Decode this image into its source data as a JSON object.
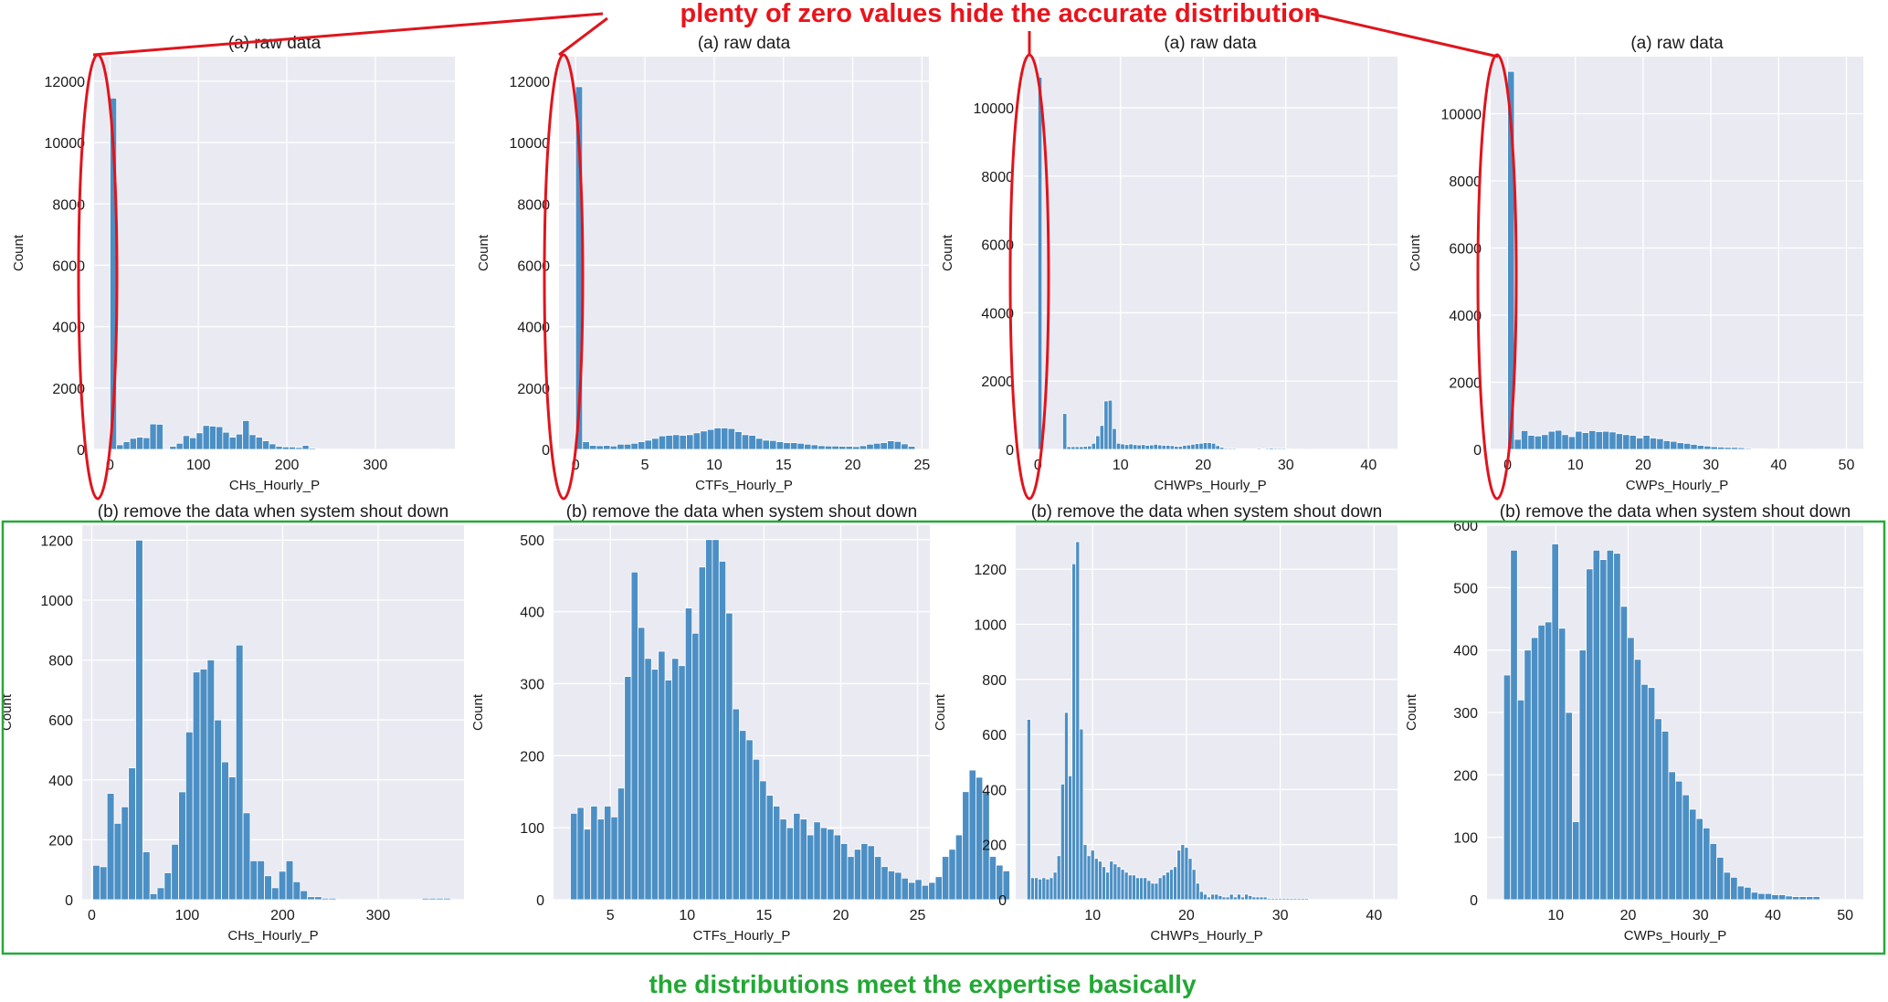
{
  "annotations": {
    "top": "plenty of zero values hide the accurate distribution",
    "bottom": "the distributions meet the expertise basically",
    "top_color": "#e8141c",
    "bottom_color": "#22a834",
    "ellipse_color": "#e0141c",
    "box_color": "#28a83a"
  },
  "style": {
    "plot_bg": "#eaeaf2",
    "grid": "#ffffff",
    "bar_fill": "#4c8fc4",
    "bar_edge": "#3a7ab0"
  },
  "chart_data": [
    {
      "type": "bar",
      "title": "(a) raw data",
      "xlabel": "CHs_Hourly_P",
      "ylabel": "Count",
      "xlim": [
        -18,
        390
      ],
      "ylim": [
        0,
        12800
      ],
      "xticks": [
        0,
        100,
        200,
        300
      ],
      "yticks": [
        0,
        2000,
        4000,
        6000,
        8000,
        10000,
        12000
      ],
      "bin_start": 0,
      "bin_width": 7.5,
      "values": [
        11450,
        150,
        250,
        360,
        400,
        380,
        830,
        820,
        0,
        100,
        200,
        450,
        380,
        540,
        780,
        760,
        740,
        560,
        400,
        500,
        940,
        480,
        400,
        280,
        180,
        100,
        80,
        80,
        60,
        130,
        40,
        20,
        10,
        10,
        5,
        5,
        0,
        0,
        0,
        0,
        0,
        0,
        0,
        0,
        0,
        0,
        0,
        0,
        0,
        5
      ]
    },
    {
      "type": "bar",
      "title": "(a) raw data",
      "xlabel": "CTFs_Hourly_P",
      "ylabel": "Count",
      "xlim": [
        -1.2,
        25.5
      ],
      "ylim": [
        0,
        12800
      ],
      "xticks": [
        0,
        5,
        10,
        15,
        20,
        25
      ],
      "yticks": [
        0,
        2000,
        4000,
        6000,
        8000,
        10000,
        12000
      ],
      "bin_start": 0,
      "bin_width": 0.5,
      "values": [
        11820,
        250,
        130,
        120,
        130,
        110,
        170,
        170,
        200,
        250,
        300,
        360,
        440,
        460,
        480,
        460,
        480,
        540,
        600,
        650,
        700,
        700,
        680,
        580,
        480,
        460,
        360,
        300,
        290,
        250,
        220,
        220,
        200,
        170,
        150,
        120,
        110,
        110,
        100,
        100,
        90,
        120,
        170,
        200,
        220,
        280,
        260,
        180,
        100
      ]
    },
    {
      "type": "bar",
      "title": "(a) raw data",
      "xlabel": "CHWPs_Hourly_P",
      "ylabel": "Count",
      "xlim": [
        -1.8,
        43.5
      ],
      "ylim": [
        0,
        11500
      ],
      "xticks": [
        0,
        10,
        20,
        30,
        40
      ],
      "yticks": [
        0,
        2000,
        4000,
        6000,
        8000,
        10000
      ],
      "bin_start": 0,
      "bin_width": 0.5,
      "values": [
        10900,
        0,
        0,
        0,
        0,
        0,
        1050,
        80,
        80,
        80,
        80,
        90,
        100,
        180,
        400,
        700,
        1420,
        1440,
        610,
        180,
        160,
        140,
        160,
        140,
        130,
        140,
        120,
        130,
        150,
        130,
        120,
        120,
        110,
        90,
        90,
        120,
        130,
        150,
        170,
        180,
        200,
        200,
        180,
        110,
        60,
        30,
        30,
        30,
        20,
        20,
        20,
        20,
        20,
        30,
        20,
        30,
        40,
        30,
        30,
        30,
        20,
        10,
        5,
        5,
        5,
        0,
        0,
        0,
        0,
        0,
        0,
        0,
        0,
        0,
        0,
        0,
        0,
        0,
        0,
        0,
        0,
        0,
        0,
        0
      ]
    },
    {
      "type": "bar",
      "title": "(a) raw data",
      "xlabel": "CWPs_Hourly_P",
      "ylabel": "Count",
      "xlim": [
        -2.5,
        52.5
      ],
      "ylim": [
        0,
        11700
      ],
      "xticks": [
        0,
        10,
        20,
        30,
        40,
        50
      ],
      "yticks": [
        0,
        2000,
        4000,
        6000,
        8000,
        10000
      ],
      "bin_start": 0,
      "bin_width": 1.0,
      "values": [
        11260,
        300,
        560,
        420,
        400,
        440,
        540,
        570,
        440,
        380,
        540,
        500,
        560,
        530,
        540,
        520,
        470,
        440,
        420,
        340,
        420,
        340,
        320,
        260,
        240,
        200,
        180,
        150,
        120,
        100,
        80,
        70,
        60,
        60,
        50,
        30,
        20,
        20,
        10,
        10,
        10,
        10,
        10,
        10,
        10,
        5,
        5,
        5,
        5,
        5
      ]
    },
    {
      "type": "bar",
      "title": "(b) remove the data when system shout down",
      "xlabel": "CHs_Hourly_P",
      "ylabel": "Count",
      "xlim": [
        -10,
        390
      ],
      "ylim": [
        0,
        1250
      ],
      "xticks": [
        0,
        100,
        200,
        300
      ],
      "yticks": [
        0,
        200,
        400,
        600,
        800,
        1000,
        1200
      ],
      "bin_start": 1,
      "bin_width": 7.5,
      "values": [
        115,
        110,
        355,
        255,
        310,
        440,
        1200,
        160,
        20,
        40,
        90,
        185,
        360,
        560,
        760,
        770,
        800,
        600,
        460,
        410,
        850,
        290,
        130,
        130,
        80,
        40,
        95,
        130,
        60,
        30,
        10,
        10,
        5,
        5,
        0,
        0,
        0,
        0,
        0,
        0,
        0,
        0,
        0,
        0,
        0,
        0,
        5,
        5,
        5,
        5
      ]
    },
    {
      "type": "bar",
      "title": "(b) remove the data when system shout down",
      "xlabel": "CTFs_Hourly_P",
      "ylabel": "Count",
      "xlim": [
        1.3,
        25.8
      ],
      "ylim": [
        0,
        520
      ],
      "xticks": [
        5,
        10,
        15,
        20,
        25
      ],
      "yticks": [
        0,
        100,
        200,
        300,
        400,
        500
      ],
      "bin_start": 2.4,
      "bin_width": 0.44,
      "values": [
        120,
        128,
        98,
        130,
        112,
        130,
        115,
        155,
        310,
        455,
        378,
        335,
        320,
        345,
        305,
        335,
        325,
        405,
        370,
        462,
        500,
        500,
        470,
        398,
        265,
        235,
        222,
        195,
        165,
        145,
        130,
        112,
        100,
        120,
        112,
        90,
        108,
        100,
        98,
        90,
        78,
        60,
        70,
        78,
        75,
        60,
        46,
        40,
        38,
        30,
        24,
        28,
        20,
        24,
        32,
        60,
        70,
        90,
        150,
        180,
        170,
        150,
        60,
        48,
        40
      ]
    },
    {
      "type": "bar",
      "title": "(b) remove the data when system shout down",
      "xlabel": "CHWPs_Hourly_P",
      "ylabel": "Count",
      "xlim": [
        1.8,
        42.5
      ],
      "ylim": [
        0,
        1360
      ],
      "xticks": [
        10,
        20,
        30,
        40
      ],
      "yticks": [
        0,
        200,
        400,
        600,
        800,
        1000,
        1200
      ],
      "bin_start": 3.0,
      "bin_width": 0.4,
      "values": [
        655,
        80,
        80,
        75,
        80,
        75,
        80,
        100,
        160,
        420,
        680,
        450,
        1220,
        1300,
        620,
        200,
        160,
        180,
        150,
        140,
        120,
        100,
        140,
        130,
        120,
        110,
        100,
        90,
        90,
        80,
        80,
        80,
        70,
        60,
        60,
        80,
        90,
        100,
        110,
        120,
        180,
        200,
        190,
        150,
        110,
        60,
        30,
        20,
        10,
        20,
        20,
        15,
        10,
        10,
        20,
        10,
        20,
        10,
        20,
        15,
        10,
        10,
        10,
        10,
        5,
        5,
        5,
        5,
        5,
        5,
        5,
        5,
        5,
        5,
        5
      ]
    },
    {
      "type": "bar",
      "title": "(b) remove the data when system shout down",
      "xlabel": "CWPs_Hourly_P",
      "ylabel": "Count",
      "xlim": [
        0.5,
        52.5
      ],
      "ylim": [
        0,
        600
      ],
      "xticks": [
        10,
        20,
        30,
        40,
        50
      ],
      "yticks": [
        0,
        100,
        200,
        300,
        400,
        500,
        600
      ],
      "bin_start": 2.8,
      "bin_width": 0.95,
      "values": [
        360,
        560,
        320,
        400,
        420,
        440,
        445,
        570,
        435,
        300,
        125,
        400,
        530,
        560,
        545,
        560,
        555,
        470,
        420,
        385,
        345,
        340,
        290,
        270,
        205,
        190,
        168,
        145,
        130,
        115,
        90,
        68,
        44,
        36,
        22,
        20,
        12,
        10,
        10,
        8,
        8,
        6,
        5,
        5,
        5,
        5,
        0,
        0,
        0,
        0
      ]
    }
  ]
}
